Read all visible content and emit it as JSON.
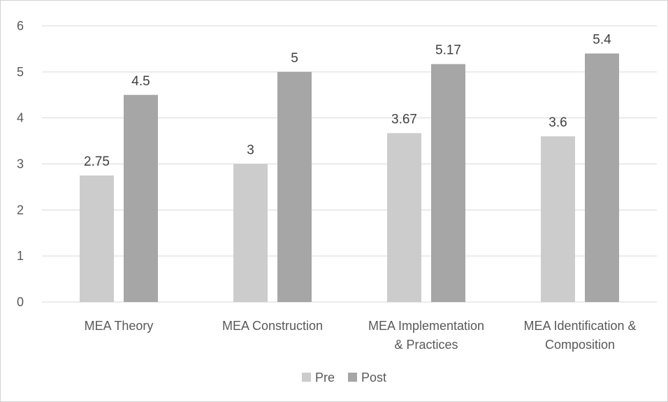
{
  "chart_data": {
    "type": "bar",
    "categories": [
      [
        "MEA Theory"
      ],
      [
        "MEA Construction"
      ],
      [
        "MEA Implementation",
        "& Practices"
      ],
      [
        "MEA Identification &",
        "Composition"
      ]
    ],
    "series": [
      {
        "name": "Pre",
        "color": "#cccccc",
        "values": [
          2.75,
          3,
          3.67,
          3.6
        ]
      },
      {
        "name": "Post",
        "color": "#a6a6a6",
        "values": [
          4.5,
          5,
          5.17,
          5.4
        ]
      }
    ],
    "data_labels": [
      [
        "2.75",
        "3",
        "3.67",
        "3.6"
      ],
      [
        "4.5",
        "5",
        "5.17",
        "5.4"
      ]
    ],
    "ylim": [
      0,
      6
    ],
    "yticks": [
      "0",
      "1",
      "2",
      "3",
      "4",
      "5",
      "6"
    ],
    "grid": true,
    "legend": "bottom",
    "gridline_color": "#d9d9d9",
    "axis_color": "#d9d9d9"
  }
}
